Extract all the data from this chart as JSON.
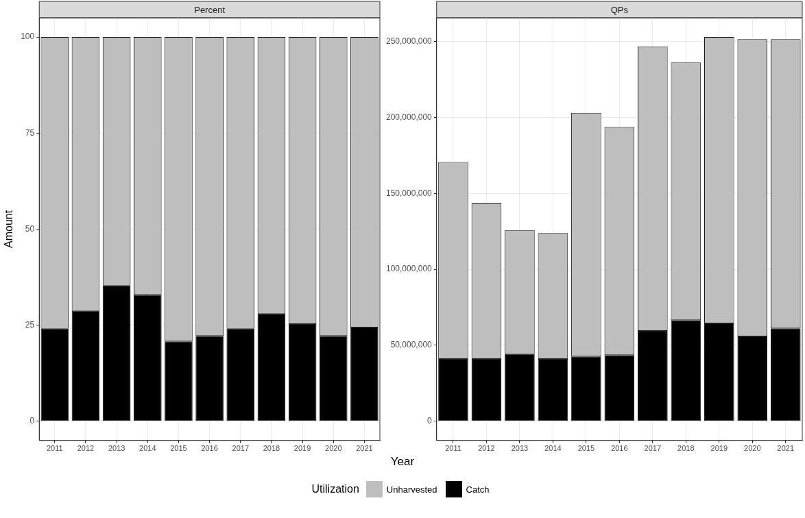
{
  "chart_data": [
    {
      "type": "bar",
      "title": "Percent",
      "xlabel": "Year",
      "ylabel": "Amount",
      "legend": "bottom",
      "legend_title": "Utilization",
      "stacked": true,
      "grid": true,
      "categories": [
        "2011",
        "2012",
        "2013",
        "2014",
        "2015",
        "2016",
        "2017",
        "2018",
        "2019",
        "2020",
        "2021"
      ],
      "series": [
        {
          "name": "Catch",
          "color": "#000000",
          "values": [
            24.1,
            28.7,
            35.3,
            32.9,
            20.8,
            22.2,
            24.1,
            28.0,
            25.3,
            22.2,
            24.4
          ]
        },
        {
          "name": "Unharvested",
          "color": "#bebebe",
          "values": [
            75.9,
            71.3,
            64.7,
            67.1,
            79.2,
            77.8,
            75.9,
            72.0,
            74.7,
            77.8,
            75.6
          ]
        }
      ],
      "ylim": [
        -5,
        105
      ],
      "yticks": [
        0,
        25,
        50,
        75,
        100
      ]
    },
    {
      "type": "bar",
      "title": "QPs",
      "stacked": true,
      "grid": true,
      "categories": [
        "2011",
        "2012",
        "2013",
        "2014",
        "2015",
        "2016",
        "2017",
        "2018",
        "2019",
        "2020",
        "2021"
      ],
      "series": [
        {
          "color": "#000000",
          "values": [
            41000000,
            41000000,
            44200000,
            41000000,
            42700000,
            43500000,
            59500000,
            66600000,
            64400000,
            55800000,
            61200000
          ]
        },
        {
          "color": "#bebebe",
          "values": [
            129700000,
            102800000,
            81700000,
            82900000,
            160300000,
            150300000,
            187300000,
            169600000,
            188600000,
            195700000,
            190300000
          ]
        }
      ],
      "ylim": [
        -12650000,
        265650000
      ],
      "yticks": [
        0,
        {
          "value": 50000000,
          "label": "50,000,000"
        },
        {
          "value": 100000000,
          "label": "100,000,000"
        },
        {
          "value": 150000000,
          "label": "150,000,000"
        },
        {
          "value": 200000000,
          "label": "200,000,000"
        },
        {
          "value": 250000000,
          "label": "250,000,000"
        }
      ]
    }
  ]
}
